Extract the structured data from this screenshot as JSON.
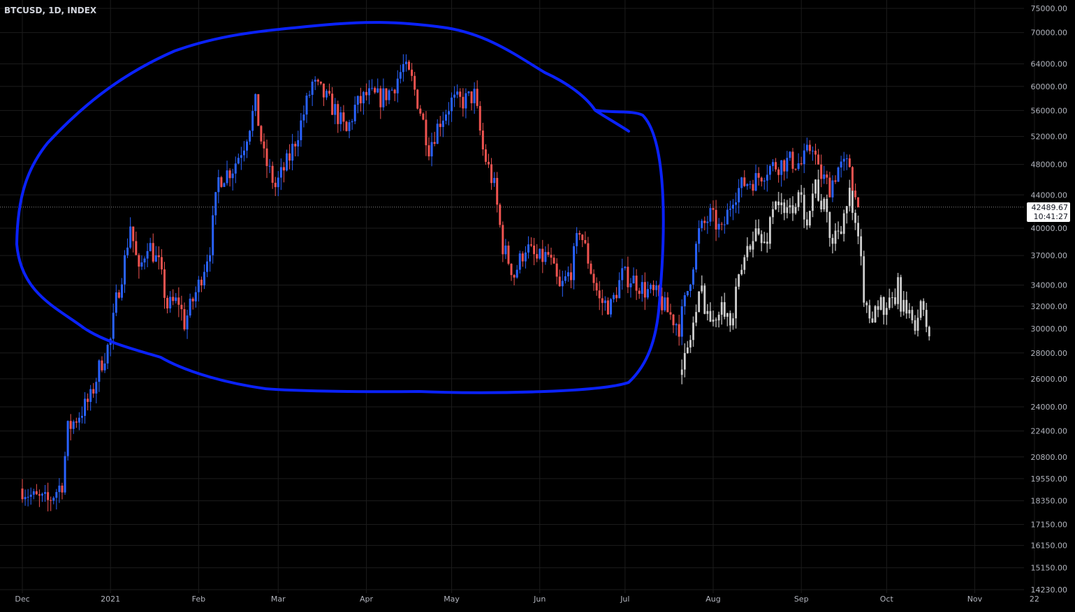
{
  "header": {
    "symbol_label": "BTCUSD, 1D, INDEX"
  },
  "last_price": {
    "value": "42489.67",
    "countdown": "10:41:27",
    "numeric": 42489.67
  },
  "colors": {
    "up": "#2962ff",
    "down": "#ef5350",
    "overlay": "#9e9e9e",
    "annotation": "#0a22ff",
    "grid": "#1c1c1c",
    "axis_text": "#b2b5be"
  },
  "chart_data": {
    "type": "candlestick",
    "title": "BTCUSD, 1D, INDEX",
    "y_scale": "log",
    "ylim": [
      14230,
      75000
    ],
    "y_ticks": [
      "75000.00",
      "70000.00",
      "64000.00",
      "60000.00",
      "56000.00",
      "52000.00",
      "48000.00",
      "44000.00",
      "40000.00",
      "37000.00",
      "34000.00",
      "32000.00",
      "30000.00",
      "28000.00",
      "26000.00",
      "24000.00",
      "22400.00",
      "20800.00",
      "19550.00",
      "18350.00",
      "17150.00",
      "16150.00",
      "15150.00",
      "14230.00"
    ],
    "x_ticks": [
      "Dec",
      "2021",
      "Feb",
      "Mar",
      "Apr",
      "May",
      "Jun",
      "Jul",
      "Aug",
      "Sep",
      "Oct",
      "Nov",
      "22"
    ],
    "grid": true,
    "series": [
      {
        "name": "",
        "kind": "candles",
        "color_up": "#2962ff",
        "color_down": "#ef5350",
        "points": [
          [
            "2020-12-01",
            19000
          ],
          [
            "2020-12-05",
            18500
          ],
          [
            "2020-12-10",
            18300
          ],
          [
            "2020-12-15",
            19300
          ],
          [
            "2020-12-17",
            22500
          ],
          [
            "2020-12-21",
            23500
          ],
          [
            "2020-12-25",
            24600
          ],
          [
            "2020-12-28",
            26800
          ],
          [
            "2021-01-01",
            29000
          ],
          [
            "2021-01-03",
            32500
          ],
          [
            "2021-01-06",
            36500
          ],
          [
            "2021-01-08",
            40500
          ],
          [
            "2021-01-11",
            35000
          ],
          [
            "2021-01-14",
            38500
          ],
          [
            "2021-01-18",
            36000
          ],
          [
            "2021-01-21",
            32000
          ],
          [
            "2021-01-25",
            32500
          ],
          [
            "2021-01-27",
            30500
          ],
          [
            "2021-02-01",
            34000
          ],
          [
            "2021-02-05",
            38000
          ],
          [
            "2021-02-08",
            46000
          ],
          [
            "2021-02-13",
            47500
          ],
          [
            "2021-02-17",
            51000
          ],
          [
            "2021-02-21",
            57000
          ],
          [
            "2021-02-24",
            49000
          ],
          [
            "2021-02-28",
            45000
          ],
          [
            "2021-03-05",
            49000
          ],
          [
            "2021-03-09",
            54000
          ],
          [
            "2021-03-13",
            60500
          ],
          [
            "2021-03-17",
            58500
          ],
          [
            "2021-03-21",
            56000
          ],
          [
            "2021-03-25",
            52500
          ],
          [
            "2021-03-28",
            56500
          ],
          [
            "2021-04-01",
            58500
          ],
          [
            "2021-04-06",
            58000
          ],
          [
            "2021-04-10",
            59500
          ],
          [
            "2021-04-14",
            63500
          ],
          [
            "2021-04-17",
            61000
          ],
          [
            "2021-04-20",
            56000
          ],
          [
            "2021-04-23",
            50500
          ],
          [
            "2021-04-27",
            54500
          ],
          [
            "2021-05-01",
            57500
          ],
          [
            "2021-05-05",
            57500
          ],
          [
            "2021-05-09",
            58500
          ],
          [
            "2021-05-12",
            50000
          ],
          [
            "2021-05-16",
            45000
          ],
          [
            "2021-05-19",
            38000
          ],
          [
            "2021-05-23",
            35000
          ],
          [
            "2021-05-27",
            38000
          ],
          [
            "2021-05-31",
            36500
          ],
          [
            "2021-06-04",
            37000
          ],
          [
            "2021-06-08",
            33500
          ],
          [
            "2021-06-12",
            35500
          ],
          [
            "2021-06-15",
            40000
          ],
          [
            "2021-06-19",
            35500
          ],
          [
            "2021-06-22",
            32500
          ],
          [
            "2021-06-26",
            32000
          ],
          [
            "2021-06-30",
            35000
          ],
          [
            "2021-07-04",
            34500
          ],
          [
            "2021-07-08",
            33500
          ],
          [
            "2021-07-12",
            33000
          ],
          [
            "2021-07-16",
            31500
          ],
          [
            "2021-07-20",
            30200
          ],
          [
            "2021-07-23",
            33500
          ],
          [
            "2021-07-27",
            39500
          ],
          [
            "2021-07-31",
            41500
          ],
          [
            "2021-08-04",
            39500
          ],
          [
            "2021-08-08",
            44000
          ],
          [
            "2021-08-12",
            45500
          ],
          [
            "2021-08-16",
            46000
          ],
          [
            "2021-08-20",
            47500
          ],
          [
            "2021-08-24",
            48000
          ],
          [
            "2021-08-28",
            48500
          ],
          [
            "2021-09-01",
            48000
          ],
          [
            "2021-09-05",
            51000
          ],
          [
            "2021-09-07",
            47000
          ],
          [
            "2021-09-11",
            45000
          ],
          [
            "2021-09-14",
            47500
          ],
          [
            "2021-09-18",
            48000
          ],
          [
            "2021-09-20",
            43500
          ],
          [
            "2021-09-21",
            42489.67
          ]
        ]
      },
      {
        "name": "",
        "kind": "line",
        "color": "#9e9e9e",
        "points": [
          [
            "2021-07-21",
            26300
          ],
          [
            "2021-07-25",
            30500
          ],
          [
            "2021-07-28",
            33500
          ],
          [
            "2021-08-01",
            30000
          ],
          [
            "2021-08-04",
            33500
          ],
          [
            "2021-08-07",
            30000
          ],
          [
            "2021-08-11",
            35500
          ],
          [
            "2021-08-15",
            40000
          ],
          [
            "2021-08-19",
            38000
          ],
          [
            "2021-08-23",
            44000
          ],
          [
            "2021-08-26",
            41000
          ],
          [
            "2021-08-30",
            43500
          ],
          [
            "2021-09-03",
            42000
          ],
          [
            "2021-09-06",
            45500
          ],
          [
            "2021-09-09",
            42000
          ],
          [
            "2021-09-12",
            38500
          ],
          [
            "2021-09-15",
            41000
          ],
          [
            "2021-09-18",
            43500
          ],
          [
            "2021-09-22",
            36000
          ],
          [
            "2021-09-24",
            31000
          ],
          [
            "2021-09-28",
            32500
          ],
          [
            "2021-10-01",
            31000
          ],
          [
            "2021-10-05",
            33500
          ],
          [
            "2021-10-09",
            30500
          ],
          [
            "2021-10-13",
            31500
          ],
          [
            "2021-10-16",
            29800
          ]
        ]
      }
    ]
  }
}
